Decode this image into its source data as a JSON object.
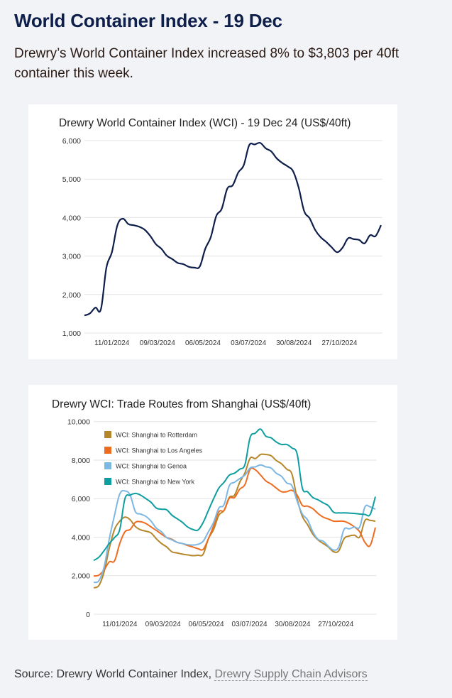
{
  "header": {
    "title": "World Container Index - 19 Dec",
    "lede": "Drewry’s World Container Index increased 8% to $3,803 per 40ft container this week."
  },
  "footer": {
    "source_prefix": "Source: Drewry World Container Index, ",
    "link_label": "Drewry Supply Chain Advisors"
  },
  "chart_data": [
    {
      "type": "line",
      "title": "Drewry World Container Index (WCI) - 19 Dec 24 (US$/40ft)",
      "xlabel": "",
      "ylabel": "",
      "ylim": [
        1000,
        6000
      ],
      "y_ticks": [
        "1,000",
        "2,000",
        "3,000",
        "4,000",
        "5,000",
        "6,000"
      ],
      "x_ticks": [
        "11/01/2024",
        "09/03/2024",
        "06/05/2024",
        "03/07/2024",
        "30/08/2024",
        "27/10/2024"
      ],
      "grid": true,
      "x": [
        "2023-12-07",
        "2023-12-14",
        "2023-12-21",
        "2023-12-28",
        "2024-01-04",
        "2024-01-11",
        "2024-01-18",
        "2024-01-25",
        "2024-02-01",
        "2024-02-08",
        "2024-02-15",
        "2024-02-22",
        "2024-02-29",
        "2024-03-07",
        "2024-03-14",
        "2024-03-21",
        "2024-03-28",
        "2024-04-04",
        "2024-04-11",
        "2024-04-18",
        "2024-04-25",
        "2024-05-02",
        "2024-05-09",
        "2024-05-16",
        "2024-05-23",
        "2024-05-30",
        "2024-06-06",
        "2024-06-13",
        "2024-06-20",
        "2024-06-27",
        "2024-07-04",
        "2024-07-11",
        "2024-07-18",
        "2024-07-25",
        "2024-08-01",
        "2024-08-08",
        "2024-08-15",
        "2024-08-22",
        "2024-08-29",
        "2024-09-05",
        "2024-09-12",
        "2024-09-19",
        "2024-09-26",
        "2024-10-03",
        "2024-10-10",
        "2024-10-17",
        "2024-10-24",
        "2024-10-31",
        "2024-11-07",
        "2024-11-14",
        "2024-11-21",
        "2024-11-28",
        "2024-12-05",
        "2024-12-12",
        "2024-12-19"
      ],
      "series": [
        {
          "color": "#0f1f4b",
          "values": [
            1456,
            1510,
            1660,
            1620,
            2700,
            3100,
            3800,
            3970,
            3830,
            3800,
            3760,
            3680,
            3520,
            3310,
            3190,
            3010,
            2920,
            2820,
            2790,
            2720,
            2700,
            2730,
            3190,
            3490,
            4040,
            4230,
            4750,
            4840,
            5170,
            5360,
            5880,
            5900,
            5940,
            5800,
            5720,
            5540,
            5420,
            5330,
            5200,
            4780,
            4170,
            3980,
            3680,
            3490,
            3370,
            3230,
            3100,
            3220,
            3460,
            3440,
            3420,
            3330,
            3540,
            3520,
            3803
          ]
        }
      ]
    },
    {
      "type": "line",
      "title": "Drewry WCI: Trade Routes from Shanghai (US$/40ft)",
      "xlabel": "",
      "ylabel": "",
      "ylim": [
        0,
        10000
      ],
      "y_ticks": [
        "0",
        "2,000",
        "4,000",
        "6,000",
        "8,000",
        "10,000"
      ],
      "x_ticks": [
        "11/01/2024",
        "09/03/2024",
        "06/05/2024",
        "03/07/2024",
        "30/08/2024",
        "27/10/2024"
      ],
      "grid": true,
      "legend": "top-left",
      "x": [
        "2023-12-07",
        "2023-12-14",
        "2023-12-21",
        "2023-12-28",
        "2024-01-04",
        "2024-01-11",
        "2024-01-18",
        "2024-01-25",
        "2024-02-01",
        "2024-02-08",
        "2024-02-15",
        "2024-02-22",
        "2024-02-29",
        "2024-03-07",
        "2024-03-14",
        "2024-03-21",
        "2024-03-28",
        "2024-04-04",
        "2024-04-11",
        "2024-04-18",
        "2024-04-25",
        "2024-05-02",
        "2024-05-09",
        "2024-05-16",
        "2024-05-23",
        "2024-05-30",
        "2024-06-06",
        "2024-06-13",
        "2024-06-20",
        "2024-06-27",
        "2024-07-04",
        "2024-07-11",
        "2024-07-18",
        "2024-07-25",
        "2024-08-01",
        "2024-08-08",
        "2024-08-15",
        "2024-08-22",
        "2024-08-29",
        "2024-09-05",
        "2024-09-12",
        "2024-09-19",
        "2024-09-26",
        "2024-10-03",
        "2024-10-10",
        "2024-10-17",
        "2024-10-24",
        "2024-10-31",
        "2024-11-07",
        "2024-11-14",
        "2024-11-21",
        "2024-11-28",
        "2024-12-05",
        "2024-12-12",
        "2024-12-19"
      ],
      "series": [
        {
          "name": "WCI: Shanghai to Rotterdam",
          "color": "#b5862a",
          "values": [
            1370,
            1490,
            2200,
            3430,
            4400,
            4830,
            5040,
            4900,
            4550,
            4380,
            4310,
            4220,
            3920,
            3670,
            3490,
            3240,
            3180,
            3120,
            3080,
            3040,
            3060,
            3120,
            3920,
            4400,
            5140,
            5390,
            6060,
            6180,
            6850,
            7340,
            8100,
            8080,
            8290,
            8290,
            8230,
            7980,
            7810,
            7530,
            7280,
            6000,
            5080,
            4650,
            4160,
            3860,
            3670,
            3490,
            3240,
            3300,
            3920,
            4060,
            4100,
            4010,
            4860,
            4870,
            4830
          ]
        },
        {
          "name": "WCI: Shanghai to Los Angeles",
          "color": "#ee6c1f",
          "values": [
            1980,
            2030,
            2300,
            2720,
            2770,
            3670,
            4280,
            4400,
            4770,
            4800,
            4710,
            4530,
            4350,
            4160,
            3980,
            3890,
            3730,
            3670,
            3570,
            3490,
            3400,
            3370,
            3920,
            4590,
            5320,
            5390,
            6020,
            6060,
            6490,
            6730,
            7530,
            7490,
            7220,
            6920,
            6760,
            6550,
            6360,
            6360,
            6430,
            6180,
            5650,
            5610,
            5480,
            5230,
            5040,
            4940,
            4830,
            4830,
            4820,
            4710,
            4530,
            4280,
            3730,
            3570,
            4500
          ]
        },
        {
          "name": "WCI: Shanghai to Genoa",
          "color": "#7db7e3",
          "values": [
            1650,
            1740,
            2450,
            3920,
            5140,
            6240,
            6400,
            6180,
            5320,
            5200,
            5080,
            4830,
            4470,
            4280,
            3980,
            3860,
            3730,
            3670,
            3610,
            3590,
            3630,
            3790,
            4280,
            4770,
            5510,
            5690,
            6670,
            6850,
            7040,
            7220,
            7590,
            7650,
            7750,
            7650,
            7590,
            7320,
            7160,
            6820,
            6670,
            5880,
            5200,
            4900,
            4280,
            3890,
            3790,
            3530,
            3330,
            3490,
            4400,
            4430,
            4530,
            4530,
            5570,
            5570,
            5450
          ]
        },
        {
          "name": "WCI: Shanghai to New York",
          "color": "#0f9ea0",
          "values": [
            2790,
            2960,
            3300,
            3670,
            3980,
            4400,
            6000,
            6180,
            6270,
            6180,
            6000,
            5810,
            5510,
            5450,
            5420,
            5140,
            4960,
            4770,
            4530,
            4400,
            4370,
            4770,
            5390,
            6000,
            6550,
            6850,
            7220,
            7320,
            7530,
            7770,
            9180,
            9400,
            9610,
            9240,
            9160,
            8940,
            8810,
            8810,
            8630,
            8320,
            6550,
            6360,
            6060,
            5940,
            5780,
            5630,
            5290,
            5260,
            5260,
            5250,
            5230,
            5200,
            5180,
            5180,
            6100
          ]
        }
      ]
    }
  ]
}
